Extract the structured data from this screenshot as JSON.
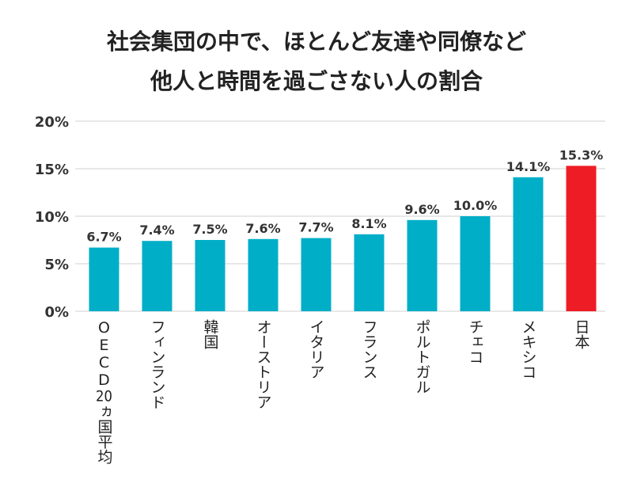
{
  "chart_data": {
    "type": "bar",
    "title_lines": [
      "社会集団の中で、ほとんど友達や同僚など",
      "他人と時間を過ごさない人の割合"
    ],
    "categories": [
      "OECD20ヵ国平均",
      "フィンランド",
      "韓国",
      "オーストリア",
      "イタリア",
      "フランス",
      "ポルトガル",
      "チェコ",
      "メキシコ",
      "日本"
    ],
    "values": [
      6.7,
      7.4,
      7.5,
      7.6,
      7.7,
      8.1,
      9.6,
      10.0,
      14.1,
      15.3
    ],
    "data_labels": [
      "6.7%",
      "7.4%",
      "7.5%",
      "7.6%",
      "7.7%",
      "8.1%",
      "9.6%",
      "10.0%",
      "14.1%",
      "15.3%"
    ],
    "yticks": [
      "0%",
      "5%",
      "10%",
      "15%",
      "20%"
    ],
    "ytick_values": [
      0,
      5,
      10,
      15,
      20
    ],
    "ylim": [
      0,
      20
    ],
    "xlabel": "",
    "ylabel": "",
    "grid": true,
    "colors": {
      "bar": "#00aec7",
      "highlight": "#ee1c25",
      "grid": "#d0d0d0"
    },
    "highlight_index": 9
  }
}
